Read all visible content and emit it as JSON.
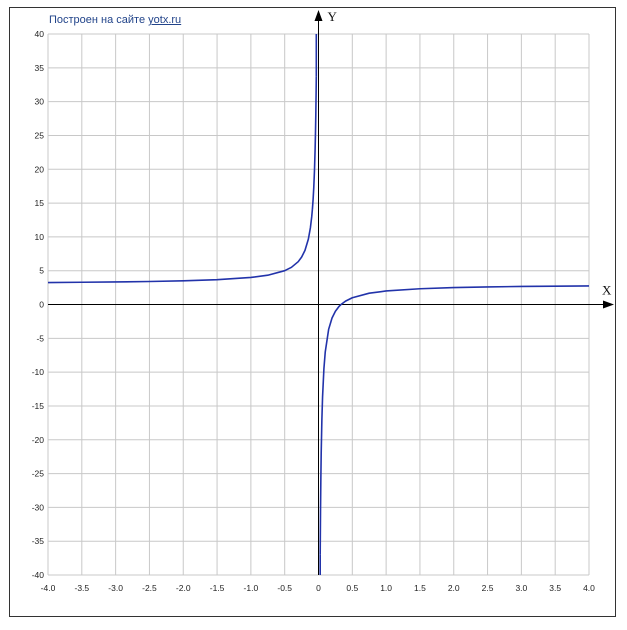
{
  "credit": {
    "prefix": "Построен на сайте",
    "link": "yotx.ru"
  },
  "chart_data": {
    "type": "line",
    "title": "",
    "xlabel": "X",
    "ylabel": "Y",
    "xlim": [
      -4.0,
      4.0
    ],
    "ylim": [
      -40,
      40
    ],
    "x_ticks": [
      "-4.0",
      "-3.5",
      "-3.0",
      "-2.5",
      "-2.0",
      "-1.5",
      "-1.0",
      "-0.5",
      "0",
      "0.5",
      "1.0",
      "1.5",
      "2.0",
      "2.5",
      "3.0",
      "3.5",
      "4.0"
    ],
    "x_tick_values": [
      -4.0,
      -3.5,
      -3.0,
      -2.5,
      -2.0,
      -1.5,
      -1.0,
      -0.5,
      0,
      0.5,
      1.0,
      1.5,
      2.0,
      2.5,
      3.0,
      3.5,
      4.0
    ],
    "y_ticks": [
      "40",
      "35",
      "30",
      "25",
      "20",
      "15",
      "10",
      "5",
      "0",
      "-5",
      "-10",
      "-15",
      "-20",
      "-25",
      "-30",
      "-35",
      "-40"
    ],
    "y_tick_values": [
      40,
      35,
      30,
      25,
      20,
      15,
      10,
      5,
      0,
      -5,
      -10,
      -15,
      -20,
      -25,
      -30,
      -35,
      -40
    ],
    "grid": true,
    "line_color": "#2233aa",
    "series": [
      {
        "segments": [
          {
            "x": [
              -4.0,
              -3.5,
              -3.0,
              -2.5,
              -2.0,
              -1.5,
              -1.0,
              -0.75,
              -0.5,
              -0.4,
              -0.3,
              -0.25,
              -0.2,
              -0.15,
              -0.12,
              -0.1,
              -0.09
            ],
            "y": [
              3.25,
              3.29,
              3.33,
              3.4,
              3.5,
              3.67,
              4.0,
              4.33,
              5.0,
              5.5,
              6.33,
              7.0,
              8.0,
              9.67,
              11.33,
              13.0,
              14.11
            ]
          },
          {
            "x": [
              -0.09,
              -0.08,
              -0.07,
              -0.06,
              -0.05,
              -0.045,
              -0.04,
              -0.035,
              -0.0325
            ],
            "y": [
              14.11,
              15.5,
              17.29,
              19.67,
              23.0,
              25.22,
              28.0,
              31.57,
              33.77
            ]
          }
        ]
      },
      {
        "segments": [
          {
            "x": [
              0.025,
              0.03,
              0.035,
              0.04,
              0.05,
              0.06,
              0.08,
              0.1,
              0.15,
              0.2,
              0.25,
              0.3,
              0.333,
              0.4,
              0.5,
              0.75,
              1.0,
              1.5,
              2.0,
              2.5,
              3.0,
              3.5,
              4.0
            ],
            "y": [
              -37.0,
              -30.33,
              -25.57,
              -22.0,
              -17.0,
              -13.67,
              -9.5,
              -7.0,
              -3.67,
              -2.0,
              -1.0,
              -0.33,
              0.0,
              0.5,
              1.0,
              1.67,
              2.0,
              2.33,
              2.5,
              2.6,
              2.67,
              2.71,
              2.75
            ]
          }
        ]
      }
    ]
  }
}
